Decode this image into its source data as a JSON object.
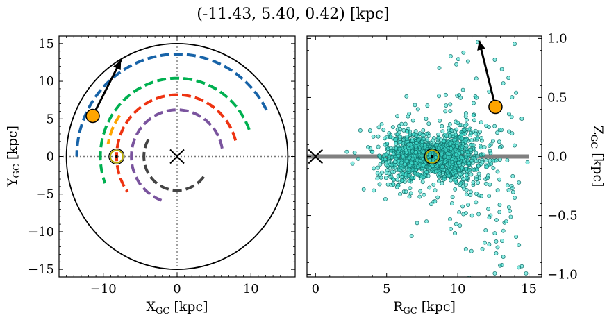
{
  "title": "(-11.43, 5.40, 0.42) [kpc]",
  "chart_data": [
    {
      "type": "scatter",
      "panel": "left",
      "xlabel": "X",
      "xlabel_sub": "GC",
      "xlabel_unit": " [kpc]",
      "ylabel": "Y",
      "ylabel_sub": "GC",
      "ylabel_unit": " [kpc]",
      "xlim": [
        -16,
        16
      ],
      "ylim": [
        -16,
        16
      ],
      "xticks": [
        -10,
        0,
        10
      ],
      "yticks": [
        -15,
        -10,
        -5,
        0,
        5,
        10,
        15
      ],
      "xtick_labels": [
        "−10",
        "0",
        "10"
      ],
      "ytick_labels": [
        "−15",
        "−10",
        "−5",
        "0",
        "5",
        "10",
        "15"
      ],
      "boundary_circle_radius": 15,
      "galactic_center": {
        "x": 0,
        "y": 0,
        "color": "#000000"
      },
      "sun": {
        "x": -8.2,
        "y": 0,
        "color": "#b8a800"
      },
      "object": {
        "x": -11.43,
        "y": 5.4,
        "color": "#ffa500"
      },
      "velocity_arrow": {
        "from": [
          -11.43,
          5.4
        ],
        "to": [
          -7.6,
          12.8
        ],
        "color": "#000000"
      },
      "arms": [
        {
          "color": "#1763a8",
          "radius": 13.6,
          "angle_start": 27,
          "angle_end": 180
        },
        {
          "color": "#00b050",
          "radius": 10.4,
          "angle_start": 20,
          "angle_end": 200
        },
        {
          "color": "#ffa500",
          "radius": 9.5,
          "angle_start": 145,
          "angle_end": 170
        },
        {
          "color": "#ee3311",
          "radius": 8.2,
          "angle_start": 15,
          "angle_end": 215
        },
        {
          "color": "#7a549e",
          "radius": 6.2,
          "angle_start": 10,
          "angle_end": 250
        },
        {
          "color": "#444444",
          "radius": 4.5,
          "angle_start": 150,
          "angle_end": 330
        }
      ]
    },
    {
      "type": "scatter",
      "panel": "right",
      "xlabel": "R",
      "xlabel_sub": "GC",
      "xlabel_unit": " [kpc]",
      "ylabel": "Z",
      "ylabel_sub": "GC",
      "ylabel_unit": " [kpc]",
      "xlim": [
        -0.6,
        15.9
      ],
      "ylim": [
        -1.02,
        1.02
      ],
      "xticks": [
        0,
        5,
        10,
        15
      ],
      "yticks": [
        -1.0,
        -0.5,
        0.0,
        0.5,
        1.0
      ],
      "xtick_labels": [
        "0",
        "5",
        "10",
        "15"
      ],
      "ytick_labels": [
        "−1.0",
        "−0.5",
        "0.0",
        "0.5",
        "1.0"
      ],
      "disk_line": {
        "x": [
          -0.6,
          15
        ],
        "z": 0,
        "color": "#808080"
      },
      "galactic_center": {
        "r": 0,
        "z": 0,
        "color": "#000000"
      },
      "sun": {
        "r": 8.2,
        "z": 0.0,
        "color": "#b8a800"
      },
      "object": {
        "r": 12.65,
        "z": 0.42,
        "color": "#ffa500"
      },
      "velocity_arrow": {
        "from": [
          12.65,
          0.42
        ],
        "to": [
          11.5,
          0.98
        ],
        "color": "#000000"
      },
      "stars_color": "#40e0d0",
      "stars_edge": "#11706a",
      "stars_cluster": {
        "r_center": 8.2,
        "z_center": 0.0,
        "count": 1800
      },
      "stars_outliers": [
        [
          11.4,
          0.97
        ],
        [
          10.4,
          0.88
        ],
        [
          9.5,
          0.85
        ],
        [
          8.7,
          0.75
        ],
        [
          9.9,
          0.78
        ],
        [
          12.6,
          0.82
        ],
        [
          13.1,
          0.74
        ],
        [
          14.1,
          0.54
        ],
        [
          13.2,
          0.62
        ],
        [
          11.3,
          0.66
        ],
        [
          10.1,
          0.52
        ],
        [
          12.2,
          0.55
        ],
        [
          13.6,
          0.36
        ],
        [
          7.2,
          0.4
        ],
        [
          6.5,
          0.34
        ],
        [
          14.5,
          0.32
        ],
        [
          14.9,
          -0.05
        ],
        [
          14.3,
          -0.22
        ],
        [
          14.0,
          -0.35
        ],
        [
          13.6,
          -0.43
        ],
        [
          13.4,
          -0.55
        ],
        [
          14.1,
          -0.68
        ],
        [
          13.2,
          -0.63
        ],
        [
          12.8,
          -0.77
        ],
        [
          11.9,
          -0.73
        ],
        [
          14.3,
          -0.75
        ],
        [
          12.6,
          -0.65
        ],
        [
          9.8,
          -0.65
        ],
        [
          7.8,
          -0.55
        ],
        [
          11.0,
          -0.5
        ],
        [
          12.7,
          -0.82
        ],
        [
          13.2,
          -0.85
        ],
        [
          14.5,
          -0.93
        ],
        [
          14.3,
          -0.94
        ],
        [
          14.8,
          -0.99
        ],
        [
          12.6,
          -0.99
        ],
        [
          13.1,
          -0.92
        ],
        [
          12.7,
          -0.72
        ],
        [
          8.4,
          -0.38
        ],
        [
          6.6,
          -0.34
        ],
        [
          2.2,
          0.04
        ],
        [
          3.0,
          -0.02
        ],
        [
          3.7,
          0.08
        ],
        [
          4.1,
          -0.1
        ],
        [
          2.6,
          -0.06
        ]
      ]
    }
  ]
}
